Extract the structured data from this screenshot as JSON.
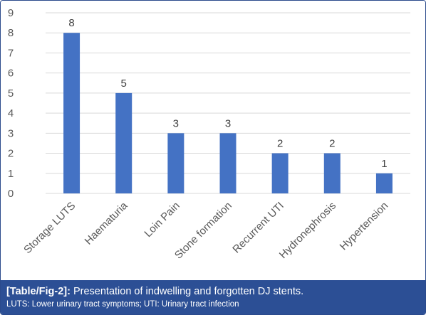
{
  "chart_data": {
    "type": "bar",
    "categories": [
      "Storage LUTS",
      "Haematuria",
      "Loin Pain",
      "Stone formation",
      "Recurrent UTI",
      "Hydronephrosis",
      "Hypertension"
    ],
    "values": [
      8,
      5,
      3,
      3,
      2,
      2,
      1
    ],
    "title": "",
    "xlabel": "",
    "ylabel": "",
    "ylim": [
      0,
      9
    ],
    "yticks": [
      0,
      1,
      2,
      3,
      4,
      5,
      6,
      7,
      8,
      9
    ],
    "grid": true,
    "legend": "none",
    "bar_color": "#4472c4",
    "data_labels": [
      "8",
      "5",
      "3",
      "3",
      "2",
      "2",
      "1"
    ]
  },
  "caption": {
    "tag": "[Table/Fig-2]:",
    "text": " Presentation of indwelling and forgotten DJ stents.",
    "note": "LUTS: Lower urinary tract symptoms; UTI: Urinary tract infection"
  },
  "colors": {
    "caption_bg": "#2c4f95",
    "caption_text": "#ffffff",
    "gridline": "#d9d9d9"
  }
}
